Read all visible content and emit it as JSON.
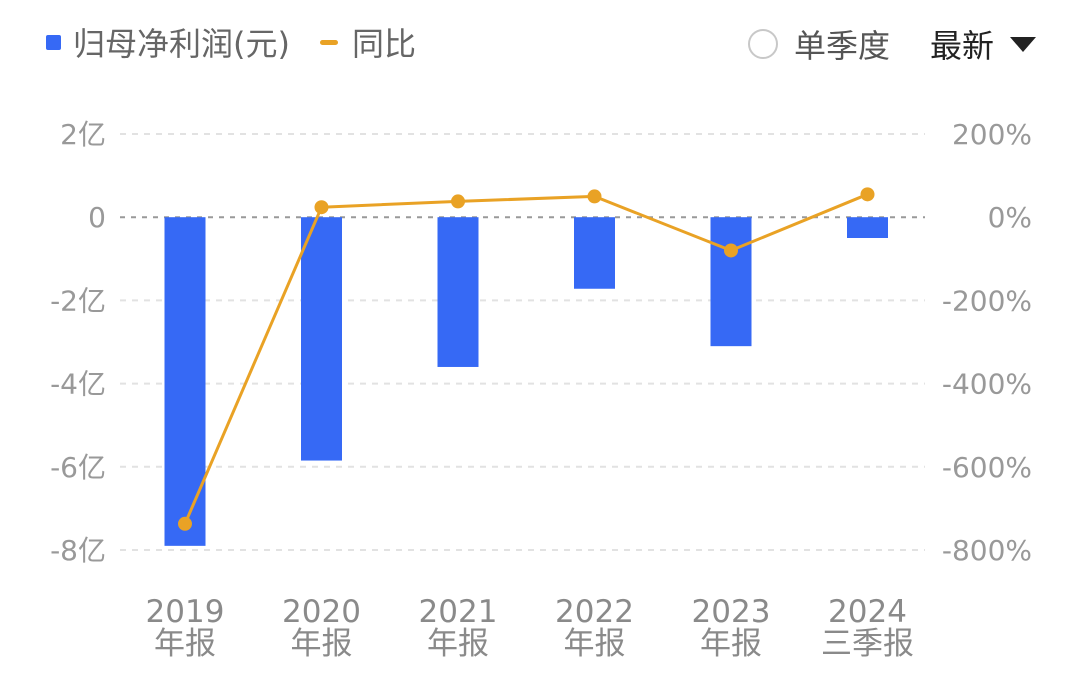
{
  "legend": {
    "profit_label": "归母净利润(元)",
    "yoy_label": "同比"
  },
  "controls": {
    "quarterly_label": "单季度",
    "period_label": "最新"
  },
  "colors": {
    "bar": "#3669f5",
    "line": "#e9a225",
    "grid": "#e2e2e2",
    "zero_line": "#999999",
    "tick_text": "#999999"
  },
  "chart_data": {
    "type": "bar",
    "categories": [
      [
        "2019",
        "年报"
      ],
      [
        "2020",
        "年报"
      ],
      [
        "2021",
        "年报"
      ],
      [
        "2022",
        "年报"
      ],
      [
        "2023",
        "年报"
      ],
      [
        "2024",
        "三季报"
      ]
    ],
    "series": [
      {
        "name": "归母净利润(元)",
        "type": "bar",
        "axis": "left",
        "values": [
          -7.9,
          -5.85,
          -3.6,
          -1.72,
          -3.1,
          -0.5
        ]
      },
      {
        "name": "同比",
        "type": "line",
        "axis": "right",
        "values": [
          -737,
          24,
          38,
          50,
          -80,
          55
        ]
      }
    ],
    "y_left": {
      "min": -8,
      "max": 2,
      "ticks": [
        2,
        0,
        -2,
        -4,
        -6,
        -8
      ],
      "tick_labels": [
        "2亿",
        "0",
        "-2亿",
        "-4亿",
        "-6亿",
        "-8亿"
      ]
    },
    "y_right": {
      "min": -800,
      "max": 200,
      "ticks": [
        200,
        0,
        -200,
        -400,
        -600,
        -800
      ],
      "tick_labels": [
        "200%",
        "0%",
        "-200%",
        "-400%",
        "-600%",
        "-800%"
      ]
    },
    "grid": true,
    "legend_position": "top-left"
  }
}
